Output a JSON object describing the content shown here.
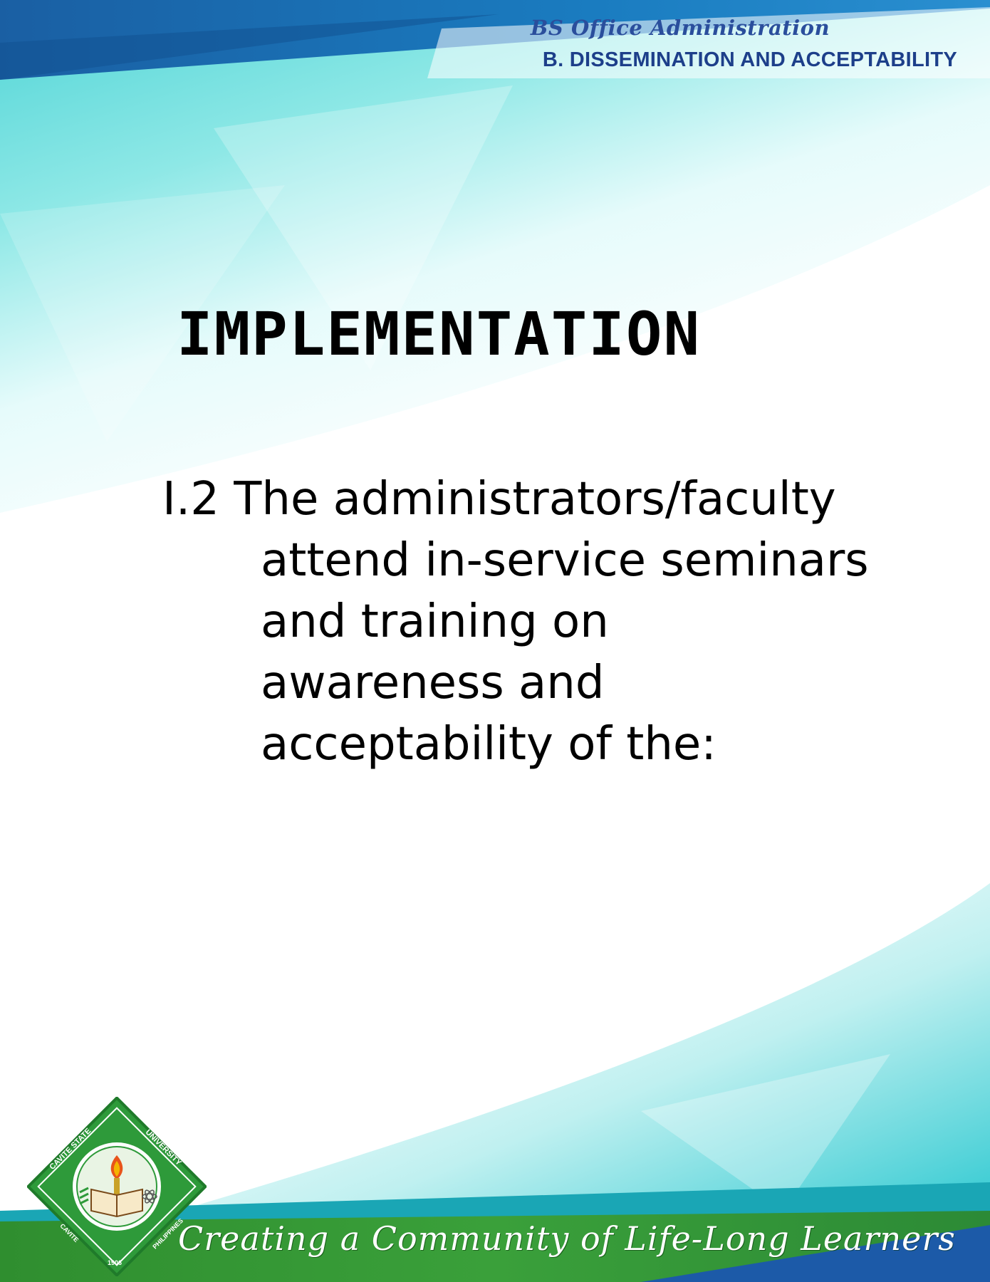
{
  "header": {
    "program": "BS Office Administration",
    "section": "B. DISSEMINATION AND ACCEPTABILITY"
  },
  "main": {
    "heading": "IMPLEMENTATION",
    "item": {
      "line1": "I.2 The administrators/faculty",
      "continuation": [
        "attend in-service seminars",
        "and training on",
        "awareness and",
        "acceptability of the:"
      ]
    }
  },
  "footer": {
    "tagline": "Creating a Community of Life-Long Learners",
    "seal_text": [
      "CAVITE STATE",
      "UNIVERSITY",
      "CAVITE",
      "PHILIPPINES",
      "1906"
    ]
  },
  "colors": {
    "header_band": "#1565a8",
    "teal": "#4fd6d8",
    "footer_green": "#2e8b2e",
    "heading_blue": "#1d3f8a"
  }
}
